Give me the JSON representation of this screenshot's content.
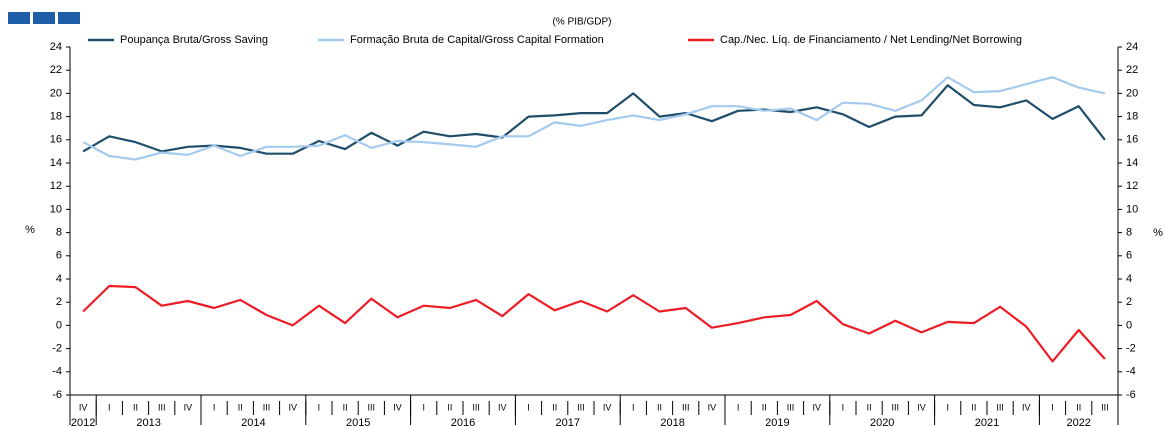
{
  "chart_data": {
    "type": "line",
    "subtitle": "(% PIB/GDP)",
    "ylabel": "%",
    "categories": [
      "IV",
      "I",
      "II",
      "III",
      "IV",
      "I",
      "II",
      "III",
      "IV",
      "I",
      "II",
      "III",
      "IV",
      "I",
      "II",
      "III",
      "IV",
      "I",
      "II",
      "III",
      "IV",
      "I",
      "II",
      "III",
      "IV",
      "I",
      "II",
      "III",
      "IV",
      "I",
      "II",
      "III",
      "IV",
      "I",
      "II",
      "III",
      "IV",
      "I",
      "II",
      "III"
    ],
    "years": [
      "2012",
      "2013",
      "2014",
      "2015",
      "2016",
      "2017",
      "2018",
      "2019",
      "2020",
      "2021",
      "2022"
    ],
    "series": [
      {
        "name": "Poupança Bruta/Gross Saving",
        "color": "#1f4e6b",
        "values": [
          15.0,
          16.3,
          15.8,
          15.0,
          15.4,
          15.5,
          15.3,
          14.8,
          14.8,
          15.9,
          15.2,
          16.6,
          15.5,
          16.7,
          16.3,
          16.5,
          16.2,
          18.0,
          18.1,
          18.3,
          18.3,
          20.0,
          18.0,
          18.3,
          17.6,
          18.5,
          18.6,
          18.4,
          18.8,
          18.2,
          17.1,
          18.0,
          18.1,
          20.7,
          19.0,
          18.8,
          19.4,
          17.8,
          18.9,
          16.0
        ]
      },
      {
        "name": "Formação Bruta de Capital/Gross Capital Formation",
        "color": "#a4caee",
        "values": [
          15.8,
          14.6,
          14.3,
          14.9,
          14.7,
          15.5,
          14.6,
          15.4,
          15.4,
          15.5,
          16.4,
          15.3,
          15.9,
          15.8,
          15.6,
          15.4,
          16.3,
          16.3,
          17.5,
          17.2,
          17.7,
          18.1,
          17.7,
          18.2,
          18.9,
          18.9,
          18.5,
          18.7,
          17.7,
          19.2,
          19.1,
          18.5,
          19.4,
          21.4,
          20.1,
          20.2,
          20.8,
          21.4,
          20.5,
          20.0
        ]
      },
      {
        "name": "Cap./Nec. Líq. de Financiamento / Net Lending/Net Borrowing",
        "color": "#ee1c25",
        "values": [
          1.2,
          3.4,
          3.3,
          1.7,
          2.1,
          1.5,
          2.2,
          0.9,
          0.0,
          1.7,
          0.2,
          2.3,
          0.7,
          1.7,
          1.5,
          2.2,
          0.8,
          2.7,
          1.3,
          2.1,
          1.2,
          2.6,
          1.2,
          1.5,
          -0.2,
          0.2,
          0.7,
          0.9,
          2.1,
          0.1,
          -0.7,
          0.4,
          -0.6,
          0.3,
          0.2,
          1.6,
          -0.1,
          -3.1,
          -0.4,
          -2.9
        ]
      }
    ],
    "ylim": [
      -6,
      24
    ],
    "yticks": [
      -6,
      -4,
      -2,
      0,
      2,
      4,
      6,
      8,
      10,
      12,
      14,
      16,
      18,
      20,
      22,
      24
    ],
    "y2lim": [
      -6,
      24
    ],
    "y2ticks": [
      -6,
      -4,
      -2,
      0,
      2,
      4,
      6,
      8,
      10,
      12,
      14,
      16,
      18,
      20,
      22,
      24
    ],
    "legend": "top"
  }
}
